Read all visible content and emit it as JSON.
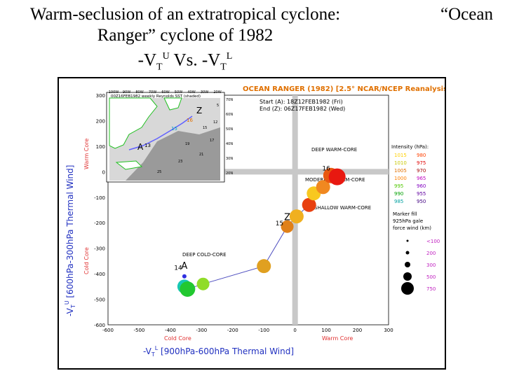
{
  "slide": {
    "title_line1": "Warm-seclusion of an extratropical cyclone:",
    "title_line2": "Ranger” cyclone of 1982",
    "title_line3_prefix": "-V",
    "title_line3_sub1": "T",
    "title_line3_sup1": "U",
    "title_line3_mid": " Vs. -V",
    "title_line3_sub2": "T",
    "title_line3_sup2": "L",
    "title_right": "“Ocean"
  },
  "chart_data": {
    "type": "scatter",
    "title": "OCEAN RANGER (1982) [2.5° NCAR/NCEP Reanalysis]",
    "start_label": "Start (A): 18Z12FEB1982 (Fri)",
    "end_label": "End (Z): 06Z17FEB1982 (Wed)",
    "xlabel": "-V",
    "xlabel_sub": "T",
    "xlabel_sup": "L",
    "xlabel_rest": " [900hPa-600hPa Thermal Wind]",
    "ylabel": "-V",
    "ylabel_sub": "T",
    "ylabel_sup": "U",
    "ylabel_rest": " [600hPa-300hPa Thermal Wind]",
    "xlim": [
      -600,
      300
    ],
    "ylim": [
      -600,
      300
    ],
    "xticks": [
      -600,
      -500,
      -400,
      -300,
      -200,
      -100,
      0,
      100,
      200,
      300
    ],
    "yticks": [
      -600,
      -500,
      -400,
      -300,
      -200,
      -100,
      0,
      100,
      200,
      300
    ],
    "x_cold_label": "Cold Core",
    "x_warm_label": "Warm Core",
    "y_cold_label": "Cold Core",
    "y_warm_label": "Warm Core",
    "quadrants": {
      "deep_warm": "DEEP WARM-CORE",
      "moderate_warm": "MODERATE WARM-CORE",
      "shallow_warm": "SHALLOW WARM-CORE",
      "deep_cold": "DEEP COLD-CORE"
    },
    "points": [
      {
        "x": -355,
        "y": -450,
        "size": 20,
        "color": "#18c8b4"
      },
      {
        "x": -345,
        "y": -460,
        "size": 22,
        "color": "#22c830"
      },
      {
        "x": -295,
        "y": -440,
        "size": 18,
        "color": "#90dc28"
      },
      {
        "x": -100,
        "y": -370,
        "size": 20,
        "color": "#e0a020"
      },
      {
        "x": -25,
        "y": -215,
        "size": 18,
        "color": "#e08018"
      },
      {
        "x": 5,
        "y": -175,
        "size": 20,
        "color": "#f0b020"
      },
      {
        "x": 45,
        "y": -130,
        "size": 20,
        "color": "#e84010"
      },
      {
        "x": 60,
        "y": -85,
        "size": 20,
        "color": "#f8c820"
      },
      {
        "x": 90,
        "y": -60,
        "size": 20,
        "color": "#f08820"
      },
      {
        "x": 115,
        "y": -15,
        "size": 22,
        "color": "#e85810"
      },
      {
        "x": 135,
        "y": -20,
        "size": 24,
        "color": "#e81810"
      },
      {
        "x": -355,
        "y": -410,
        "size": 6,
        "color": "#3030e0"
      }
    ],
    "track_labels": [
      {
        "text": "A",
        "x": -355,
        "y": -380
      },
      {
        "text": "14",
        "x": -375,
        "y": -385
      },
      {
        "text": "Z",
        "x": -25,
        "y": -190
      },
      {
        "text": "15",
        "x": -50,
        "y": -210
      },
      {
        "text": "16",
        "x": 100,
        "y": 5
      }
    ],
    "intensity_legend": {
      "title": "Intensity (hPa):",
      "items": [
        {
          "left": "1015",
          "right": "980",
          "left_color": "#ffd000",
          "right_color": "#ff4000"
        },
        {
          "left": "1010",
          "right": "975",
          "left_color": "#c8c800",
          "right_color": "#e00000"
        },
        {
          "left": "1005",
          "right": "970",
          "left_color": "#e07000",
          "right_color": "#a00000"
        },
        {
          "left": "1000",
          "right": "965",
          "left_color": "#ff8000",
          "right_color": "#c000c0"
        },
        {
          "left": "995",
          "right": "960",
          "left_color": "#50c800",
          "right_color": "#8000c0"
        },
        {
          "left": "990",
          "right": "955",
          "left_color": "#00a000",
          "right_color": "#6000a0"
        },
        {
          "left": "985",
          "right": "950",
          "left_color": "#00a0a0",
          "right_color": "#400080"
        }
      ],
      "note1": "Marker fill",
      "note2": "925hPa gale",
      "note3": "force wind (km)"
    },
    "size_legend": [
      {
        "label": "<100",
        "r": 1.5
      },
      {
        "label": "200",
        "r": 2.5
      },
      {
        "label": "300",
        "r": 4
      },
      {
        "label": "500",
        "r": 6
      },
      {
        "label": "750",
        "r": 9
      }
    ]
  },
  "inset_map": {
    "title": "00Z16FEB1982 weekly Reynolds SST (shaded)",
    "lon_labels": [
      "100W",
      "90W",
      "80W",
      "70W",
      "60W",
      "50W",
      "40W",
      "30W",
      "20W"
    ],
    "lat_labels": [
      "70N",
      "60N",
      "50N",
      "40N",
      "30N",
      "20N"
    ],
    "track_labels": [
      {
        "text": "Z",
        "color": "#000000"
      },
      {
        "text": "16",
        "color": "#e07000"
      },
      {
        "text": "15",
        "color": "#00a0c0"
      },
      {
        "text": "A",
        "color": "#000000"
      },
      {
        "text": "13",
        "color": "#000000"
      }
    ],
    "sst_values": [
      "15",
      "17",
      "19",
      "21",
      "23",
      "25",
      "12",
      "5"
    ]
  }
}
